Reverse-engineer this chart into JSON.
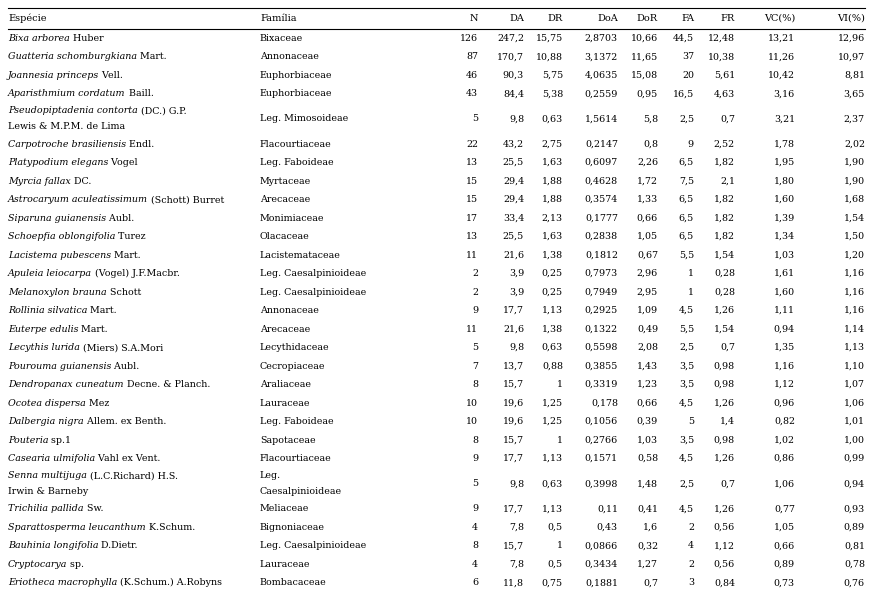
{
  "columns": [
    "Espécie",
    "Família",
    "N",
    "DA",
    "DR",
    "DoA",
    "DoR",
    "FA",
    "FR",
    "VC(%)",
    "VI(%)"
  ],
  "rows": [
    {
      "sp_italic": "Bixa arborea",
      "sp_normal": " Huber",
      "family": "Bixaceae",
      "N": "126",
      "DA": "247,2",
      "DR": "15,75",
      "DoA": "2,8703",
      "DoR": "10,66",
      "FA": "44,5",
      "FR": "12,48",
      "VC": "13,21",
      "VI": "12,96"
    },
    {
      "sp_italic": "Guatteria schomburgkiana",
      "sp_normal": " Mart.",
      "family": "Annonaceae",
      "N": "87",
      "DA": "170,7",
      "DR": "10,88",
      "DoA": "3,1372",
      "DoR": "11,65",
      "FA": "37",
      "FR": "10,38",
      "VC": "11,26",
      "VI": "10,97"
    },
    {
      "sp_italic": "Joannesia princeps",
      "sp_normal": " Vell.",
      "family": "Euphorbiaceae",
      "N": "46",
      "DA": "90,3",
      "DR": "5,75",
      "DoA": "4,0635",
      "DoR": "15,08",
      "FA": "20",
      "FR": "5,61",
      "VC": "10,42",
      "VI": "8,81"
    },
    {
      "sp_italic": "Aparisthmium cordatum",
      "sp_normal": " Baill.",
      "family": "Euphorbiaceae",
      "N": "43",
      "DA": "84,4",
      "DR": "5,38",
      "DoA": "0,2559",
      "DoR": "0,95",
      "FA": "16,5",
      "FR": "4,63",
      "VC": "3,16",
      "VI": "3,65"
    },
    {
      "sp_italic": "Pseudopiptadenia contorta",
      "sp_normal": " (DC.) G.P.\nLewis & M.P.M. de Lima",
      "family": "Leg. Mimosoideae",
      "N": "5",
      "DA": "9,8",
      "DR": "0,63",
      "DoA": "1,5614",
      "DoR": "5,8",
      "FA": "2,5",
      "FR": "0,7",
      "VC": "3,21",
      "VI": "2,37"
    },
    {
      "sp_italic": "Carpotroche brasiliensis",
      "sp_normal": " Endl.",
      "family": "Flacourtiaceae",
      "N": "22",
      "DA": "43,2",
      "DR": "2,75",
      "DoA": "0,2147",
      "DoR": "0,8",
      "FA": "9",
      "FR": "2,52",
      "VC": "1,78",
      "VI": "2,02"
    },
    {
      "sp_italic": "Platypodium elegans",
      "sp_normal": " Vogel",
      "family": "Leg. Faboideae",
      "N": "13",
      "DA": "25,5",
      "DR": "1,63",
      "DoA": "0,6097",
      "DoR": "2,26",
      "FA": "6,5",
      "FR": "1,82",
      "VC": "1,95",
      "VI": "1,90"
    },
    {
      "sp_italic": "Myrcia fallax",
      "sp_normal": " DC.",
      "family": "Myrtaceae",
      "N": "15",
      "DA": "29,4",
      "DR": "1,88",
      "DoA": "0,4628",
      "DoR": "1,72",
      "FA": "7,5",
      "FR": "2,1",
      "VC": "1,80",
      "VI": "1,90"
    },
    {
      "sp_italic": "Astrocaryum aculeatissimum",
      "sp_normal": " (Schott) Burret",
      "family": "Arecaceae",
      "N": "15",
      "DA": "29,4",
      "DR": "1,88",
      "DoA": "0,3574",
      "DoR": "1,33",
      "FA": "6,5",
      "FR": "1,82",
      "VC": "1,60",
      "VI": "1,68"
    },
    {
      "sp_italic": "Siparuna guianensis",
      "sp_normal": " Aubl.",
      "family": "Monimiaceae",
      "N": "17",
      "DA": "33,4",
      "DR": "2,13",
      "DoA": "0,1777",
      "DoR": "0,66",
      "FA": "6,5",
      "FR": "1,82",
      "VC": "1,39",
      "VI": "1,54"
    },
    {
      "sp_italic": "Schoepfia oblongifolia",
      "sp_normal": " Turez",
      "family": "Olacaceae",
      "N": "13",
      "DA": "25,5",
      "DR": "1,63",
      "DoA": "0,2838",
      "DoR": "1,05",
      "FA": "6,5",
      "FR": "1,82",
      "VC": "1,34",
      "VI": "1,50"
    },
    {
      "sp_italic": "Lacistema pubescens",
      "sp_normal": " Mart.",
      "family": "Lacistemataceae",
      "N": "11",
      "DA": "21,6",
      "DR": "1,38",
      "DoA": "0,1812",
      "DoR": "0,67",
      "FA": "5,5",
      "FR": "1,54",
      "VC": "1,03",
      "VI": "1,20"
    },
    {
      "sp_italic": "Apuleia leiocarpa",
      "sp_normal": " (Vogel) J.F.Macbr.",
      "family": "Leg. Caesalpinioideae",
      "N": "2",
      "DA": "3,9",
      "DR": "0,25",
      "DoA": "0,7973",
      "DoR": "2,96",
      "FA": "1",
      "FR": "0,28",
      "VC": "1,61",
      "VI": "1,16"
    },
    {
      "sp_italic": "Melanoxylon brauna",
      "sp_normal": " Schott",
      "family": "Leg. Caesalpinioideae",
      "N": "2",
      "DA": "3,9",
      "DR": "0,25",
      "DoA": "0,7949",
      "DoR": "2,95",
      "FA": "1",
      "FR": "0,28",
      "VC": "1,60",
      "VI": "1,16"
    },
    {
      "sp_italic": "Rollinia silvatica",
      "sp_normal": " Mart.",
      "family": "Annonaceae",
      "N": "9",
      "DA": "17,7",
      "DR": "1,13",
      "DoA": "0,2925",
      "DoR": "1,09",
      "FA": "4,5",
      "FR": "1,26",
      "VC": "1,11",
      "VI": "1,16"
    },
    {
      "sp_italic": "Euterpe edulis",
      "sp_normal": " Mart.",
      "family": "Arecaceae",
      "N": "11",
      "DA": "21,6",
      "DR": "1,38",
      "DoA": "0,1322",
      "DoR": "0,49",
      "FA": "5,5",
      "FR": "1,54",
      "VC": "0,94",
      "VI": "1,14"
    },
    {
      "sp_italic": "Lecythis lurida",
      "sp_normal": " (Miers) S.A.Mori",
      "family": "Lecythidaceae",
      "N": "5",
      "DA": "9,8",
      "DR": "0,63",
      "DoA": "0,5598",
      "DoR": "2,08",
      "FA": "2,5",
      "FR": "0,7",
      "VC": "1,35",
      "VI": "1,13"
    },
    {
      "sp_italic": "Pourouma guianensis",
      "sp_normal": " Aubl.",
      "family": "Cecropiaceae",
      "N": "7",
      "DA": "13,7",
      "DR": "0,88",
      "DoA": "0,3855",
      "DoR": "1,43",
      "FA": "3,5",
      "FR": "0,98",
      "VC": "1,16",
      "VI": "1,10"
    },
    {
      "sp_italic": "Dendropanax cuneatum",
      "sp_normal": " Decne. & Planch.",
      "family": "Araliaceae",
      "N": "8",
      "DA": "15,7",
      "DR": "1",
      "DoA": "0,3319",
      "DoR": "1,23",
      "FA": "3,5",
      "FR": "0,98",
      "VC": "1,12",
      "VI": "1,07"
    },
    {
      "sp_italic": "Ocotea dispersa",
      "sp_normal": " Mez",
      "family": "Lauraceae",
      "N": "10",
      "DA": "19,6",
      "DR": "1,25",
      "DoA": "0,178",
      "DoR": "0,66",
      "FA": "4,5",
      "FR": "1,26",
      "VC": "0,96",
      "VI": "1,06"
    },
    {
      "sp_italic": "Dalbergia nigra",
      "sp_normal": " Allem. ex Benth.",
      "family": "Leg. Faboideae",
      "N": "10",
      "DA": "19,6",
      "DR": "1,25",
      "DoA": "0,1056",
      "DoR": "0,39",
      "FA": "5",
      "FR": "1,4",
      "VC": "0,82",
      "VI": "1,01"
    },
    {
      "sp_italic": "Pouteria",
      "sp_normal": " sp.1",
      "family": "Sapotaceae",
      "N": "8",
      "DA": "15,7",
      "DR": "1",
      "DoA": "0,2766",
      "DoR": "1,03",
      "FA": "3,5",
      "FR": "0,98",
      "VC": "1,02",
      "VI": "1,00"
    },
    {
      "sp_italic": "Casearia ulmifolia",
      "sp_normal": " Vahl ex Vent.",
      "family": "Flacourtiaceae",
      "N": "9",
      "DA": "17,7",
      "DR": "1,13",
      "DoA": "0,1571",
      "DoR": "0,58",
      "FA": "4,5",
      "FR": "1,26",
      "VC": "0,86",
      "VI": "0,99"
    },
    {
      "sp_italic": "Senna multijuga",
      "sp_normal": " (L.C.Richard) H.S.\nIrwin & Barneby",
      "family": "Leg.\nCaesalpinioideae",
      "N": "5",
      "DA": "9,8",
      "DR": "0,63",
      "DoA": "0,3998",
      "DoR": "1,48",
      "FA": "2,5",
      "FR": "0,7",
      "VC": "1,06",
      "VI": "0,94"
    },
    {
      "sp_italic": "Trichilia pallida",
      "sp_normal": " Sw.",
      "family": "Meliaceae",
      "N": "9",
      "DA": "17,7",
      "DR": "1,13",
      "DoA": "0,11",
      "DoR": "0,41",
      "FA": "4,5",
      "FR": "1,26",
      "VC": "0,77",
      "VI": "0,93"
    },
    {
      "sp_italic": "Sparattosperma leucanthum",
      "sp_normal": " K.Schum.",
      "family": "Bignoniaceae",
      "N": "4",
      "DA": "7,8",
      "DR": "0,5",
      "DoA": "0,43",
      "DoR": "1,6",
      "FA": "2",
      "FR": "0,56",
      "VC": "1,05",
      "VI": "0,89"
    },
    {
      "sp_italic": "Bauhinia longifolia",
      "sp_normal": " D.Dietr.",
      "family": "Leg. Caesalpinioideae",
      "N": "8",
      "DA": "15,7",
      "DR": "1",
      "DoA": "0,0866",
      "DoR": "0,32",
      "FA": "4",
      "FR": "1,12",
      "VC": "0,66",
      "VI": "0,81"
    },
    {
      "sp_italic": "Cryptocarya",
      "sp_normal": " sp.",
      "family": "Lauraceae",
      "N": "4",
      "DA": "7,8",
      "DR": "0,5",
      "DoA": "0,3434",
      "DoR": "1,27",
      "FA": "2",
      "FR": "0,56",
      "VC": "0,89",
      "VI": "0,78"
    },
    {
      "sp_italic": "Eriotheca macrophylla",
      "sp_normal": " (K.Schum.) A.Robyns",
      "family": "Bombacaceae",
      "N": "6",
      "DA": "11,8",
      "DR": "0,75",
      "DoA": "0,1881",
      "DoR": "0,7",
      "FA": "3",
      "FR": "0,84",
      "VC": "0,73",
      "VI": "0,76"
    }
  ],
  "background_color": "#ffffff",
  "line_color": "#000000",
  "text_color": "#000000",
  "font_size": 6.8,
  "header_font_size": 7.0
}
